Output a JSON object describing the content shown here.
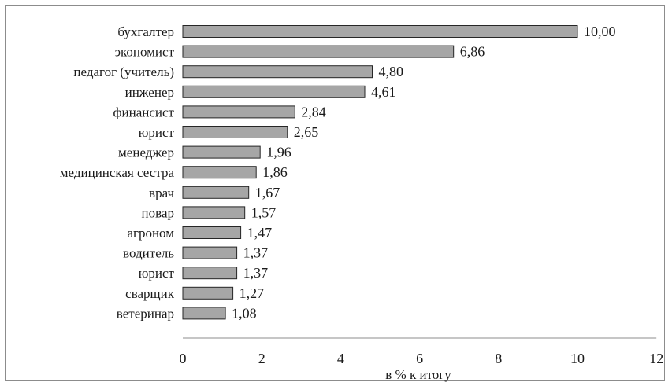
{
  "chart_data": {
    "type": "bar",
    "orientation": "horizontal",
    "categories": [
      "бухгалтер",
      "экономист",
      "педагог (учитель)",
      "инженер",
      "финансист",
      "юрист",
      "менеджер",
      "медицинская сестра",
      "врач",
      "повар",
      "агроном",
      "водитель",
      "юрист",
      "сварщик",
      "ветеринар"
    ],
    "values": [
      10.0,
      6.86,
      4.8,
      4.61,
      2.84,
      2.65,
      1.96,
      1.86,
      1.67,
      1.57,
      1.47,
      1.37,
      1.37,
      1.27,
      1.08
    ],
    "value_labels": [
      "10,00",
      "6,86",
      "4,80",
      "4,61",
      "2,84",
      "2,65",
      "1,96",
      "1,86",
      "1,67",
      "1,57",
      "1,47",
      "1,37",
      "1,37",
      "1,27",
      "1,08"
    ],
    "xlabel": "в % к итогу",
    "xlim": [
      0,
      12
    ],
    "xticks": [
      0,
      2,
      4,
      6,
      8,
      10,
      12
    ],
    "grid": false,
    "legend": "none",
    "colors": {
      "bar_fill": "#a6a6a6",
      "bar_stroke": "#262626",
      "axis": "#8c8c8c"
    }
  }
}
